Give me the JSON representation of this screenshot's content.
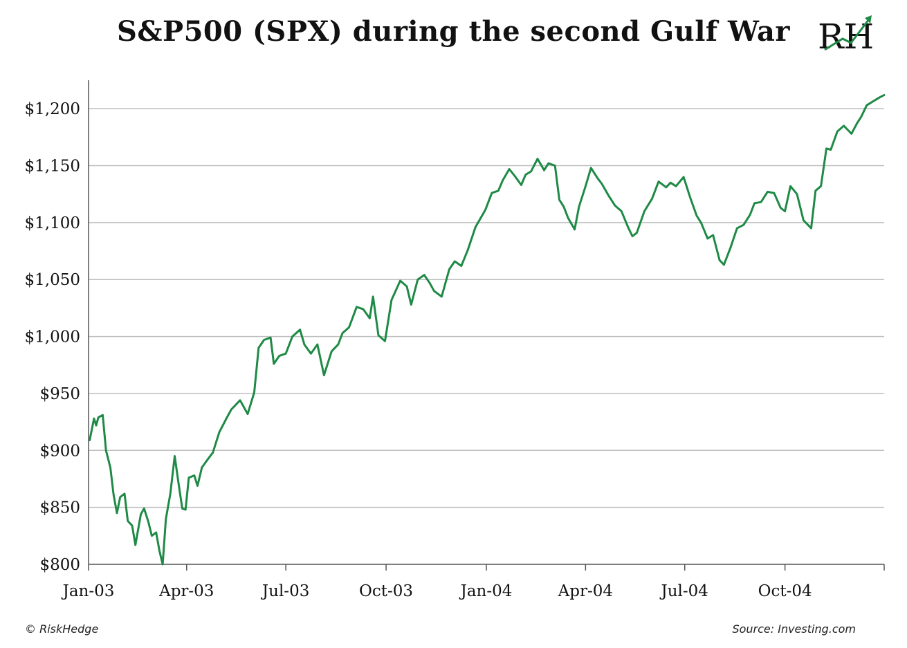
{
  "header": {
    "title": "S&P500 (SPX) during the second Gulf War",
    "logo_text": "RH"
  },
  "footer": {
    "copyright": "© RiskHedge",
    "source": "Source: Investing.com"
  },
  "colors": {
    "line": "#1e8a45",
    "grid": "#bdbdbd",
    "axis": "#555555"
  },
  "chart_data": {
    "type": "line",
    "title": "S&P500 (SPX) during the second Gulf War",
    "xlabel": "",
    "ylabel": "",
    "grid": true,
    "ylim": [
      800,
      1225
    ],
    "xlim": [
      "2003-01-01",
      "2004-12-31"
    ],
    "x_ticks": [
      {
        "date": "2003-01-01",
        "label": "Jan-03"
      },
      {
        "date": "2003-04-01",
        "label": "Apr-03"
      },
      {
        "date": "2003-07-01",
        "label": "Jul-03"
      },
      {
        "date": "2003-10-01",
        "label": "Oct-03"
      },
      {
        "date": "2004-01-01",
        "label": "Jan-04"
      },
      {
        "date": "2004-04-01",
        "label": "Apr-04"
      },
      {
        "date": "2004-07-01",
        "label": "Jul-04"
      },
      {
        "date": "2004-10-01",
        "label": "Oct-04"
      }
    ],
    "y_ticks": [
      {
        "value": 800,
        "label": "$800"
      },
      {
        "value": 850,
        "label": "$850"
      },
      {
        "value": 900,
        "label": "$900"
      },
      {
        "value": 950,
        "label": "$950"
      },
      {
        "value": 1000,
        "label": "$1,000"
      },
      {
        "value": 1050,
        "label": "$1,050"
      },
      {
        "value": 1100,
        "label": "$1,100"
      },
      {
        "value": 1150,
        "label": "$1,150"
      },
      {
        "value": 1200,
        "label": "$1,200"
      }
    ],
    "series": [
      {
        "x": [
          "2003-01-02",
          "2003-01-06",
          "2003-01-08",
          "2003-01-10",
          "2003-01-14",
          "2003-01-17",
          "2003-01-21",
          "2003-01-24",
          "2003-01-27",
          "2003-01-30",
          "2003-02-03",
          "2003-02-06",
          "2003-02-10",
          "2003-02-13",
          "2003-02-18",
          "2003-02-21",
          "2003-02-25",
          "2003-02-28",
          "2003-03-04",
          "2003-03-07",
          "2003-03-10",
          "2003-03-13",
          "2003-03-17",
          "2003-03-21",
          "2003-03-25",
          "2003-03-28",
          "2003-03-31",
          "2003-04-03",
          "2003-04-08",
          "2003-04-11",
          "2003-04-15",
          "2003-04-21",
          "2003-04-25",
          "2003-05-01",
          "2003-05-08",
          "2003-05-12",
          "2003-05-16",
          "2003-05-20",
          "2003-05-27",
          "2003-06-02",
          "2003-06-06",
          "2003-06-11",
          "2003-06-17",
          "2003-06-20",
          "2003-06-25",
          "2003-07-01",
          "2003-07-07",
          "2003-07-14",
          "2003-07-18",
          "2003-07-24",
          "2003-07-30",
          "2003-08-05",
          "2003-08-12",
          "2003-08-18",
          "2003-08-22",
          "2003-08-28",
          "2003-09-04",
          "2003-09-10",
          "2003-09-16",
          "2003-09-19",
          "2003-09-24",
          "2003-09-30",
          "2003-10-06",
          "2003-10-14",
          "2003-10-20",
          "2003-10-24",
          "2003-10-30",
          "2003-11-05",
          "2003-11-10",
          "2003-11-14",
          "2003-11-21",
          "2003-11-28",
          "2003-12-03",
          "2003-12-09",
          "2003-12-15",
          "2003-12-22",
          "2003-12-31",
          "2004-01-06",
          "2004-01-12",
          "2004-01-16",
          "2004-01-22",
          "2004-01-27",
          "2004-02-02",
          "2004-02-06",
          "2004-02-11",
          "2004-02-17",
          "2004-02-23",
          "2004-02-27",
          "2004-03-04",
          "2004-03-08",
          "2004-03-12",
          "2004-03-16",
          "2004-03-22",
          "2004-03-26",
          "2004-04-01",
          "2004-04-06",
          "2004-04-12",
          "2004-04-16",
          "2004-04-22",
          "2004-04-28",
          "2004-05-04",
          "2004-05-10",
          "2004-05-14",
          "2004-05-18",
          "2004-05-25",
          "2004-06-01",
          "2004-06-07",
          "2004-06-14",
          "2004-06-18",
          "2004-06-23",
          "2004-06-30",
          "2004-07-06",
          "2004-07-12",
          "2004-07-16",
          "2004-07-22",
          "2004-07-27",
          "2004-08-02",
          "2004-08-06",
          "2004-08-12",
          "2004-08-18",
          "2004-08-24",
          "2004-08-30",
          "2004-09-03",
          "2004-09-09",
          "2004-09-15",
          "2004-09-21",
          "2004-09-27",
          "2004-10-01",
          "2004-10-06",
          "2004-10-12",
          "2004-10-18",
          "2004-10-25",
          "2004-10-29",
          "2004-11-03",
          "2004-11-08",
          "2004-11-12",
          "2004-11-18",
          "2004-11-24",
          "2004-12-01",
          "2004-12-06",
          "2004-12-10",
          "2004-12-15",
          "2004-12-20",
          "2004-12-27",
          "2004-12-31"
        ],
        "y": [
          909,
          928,
          922,
          929,
          931,
          900,
          885,
          861,
          845,
          859,
          862,
          838,
          834,
          817,
          844,
          849,
          837,
          825,
          828,
          812,
          800,
          840,
          862,
          895,
          868,
          849,
          848,
          876,
          878,
          869,
          885,
          893,
          898,
          916,
          929,
          936,
          940,
          944,
          932,
          951,
          990,
          997,
          999,
          976,
          983,
          985,
          1000,
          1006,
          993,
          985,
          993,
          966,
          987,
          993,
          1003,
          1008,
          1026,
          1024,
          1016,
          1035,
          1001,
          996,
          1032,
          1049,
          1044,
          1028,
          1050,
          1054,
          1047,
          1040,
          1035,
          1059,
          1066,
          1062,
          1076,
          1096,
          1111,
          1126,
          1128,
          1137,
          1147,
          1141,
          1133,
          1142,
          1145,
          1156,
          1146,
          1152,
          1150,
          1120,
          1114,
          1104,
          1094,
          1114,
          1132,
          1148,
          1139,
          1134,
          1124,
          1115,
          1110,
          1096,
          1088,
          1091,
          1110,
          1121,
          1136,
          1131,
          1135,
          1132,
          1140,
          1122,
          1106,
          1100,
          1086,
          1089,
          1067,
          1063,
          1078,
          1095,
          1098,
          1107,
          1117,
          1118,
          1127,
          1126,
          1113,
          1110,
          1132,
          1125,
          1102,
          1095,
          1128,
          1132,
          1165,
          1164,
          1180,
          1185,
          1178,
          1187,
          1193,
          1203,
          1206,
          1210,
          1212
        ]
      }
    ]
  }
}
